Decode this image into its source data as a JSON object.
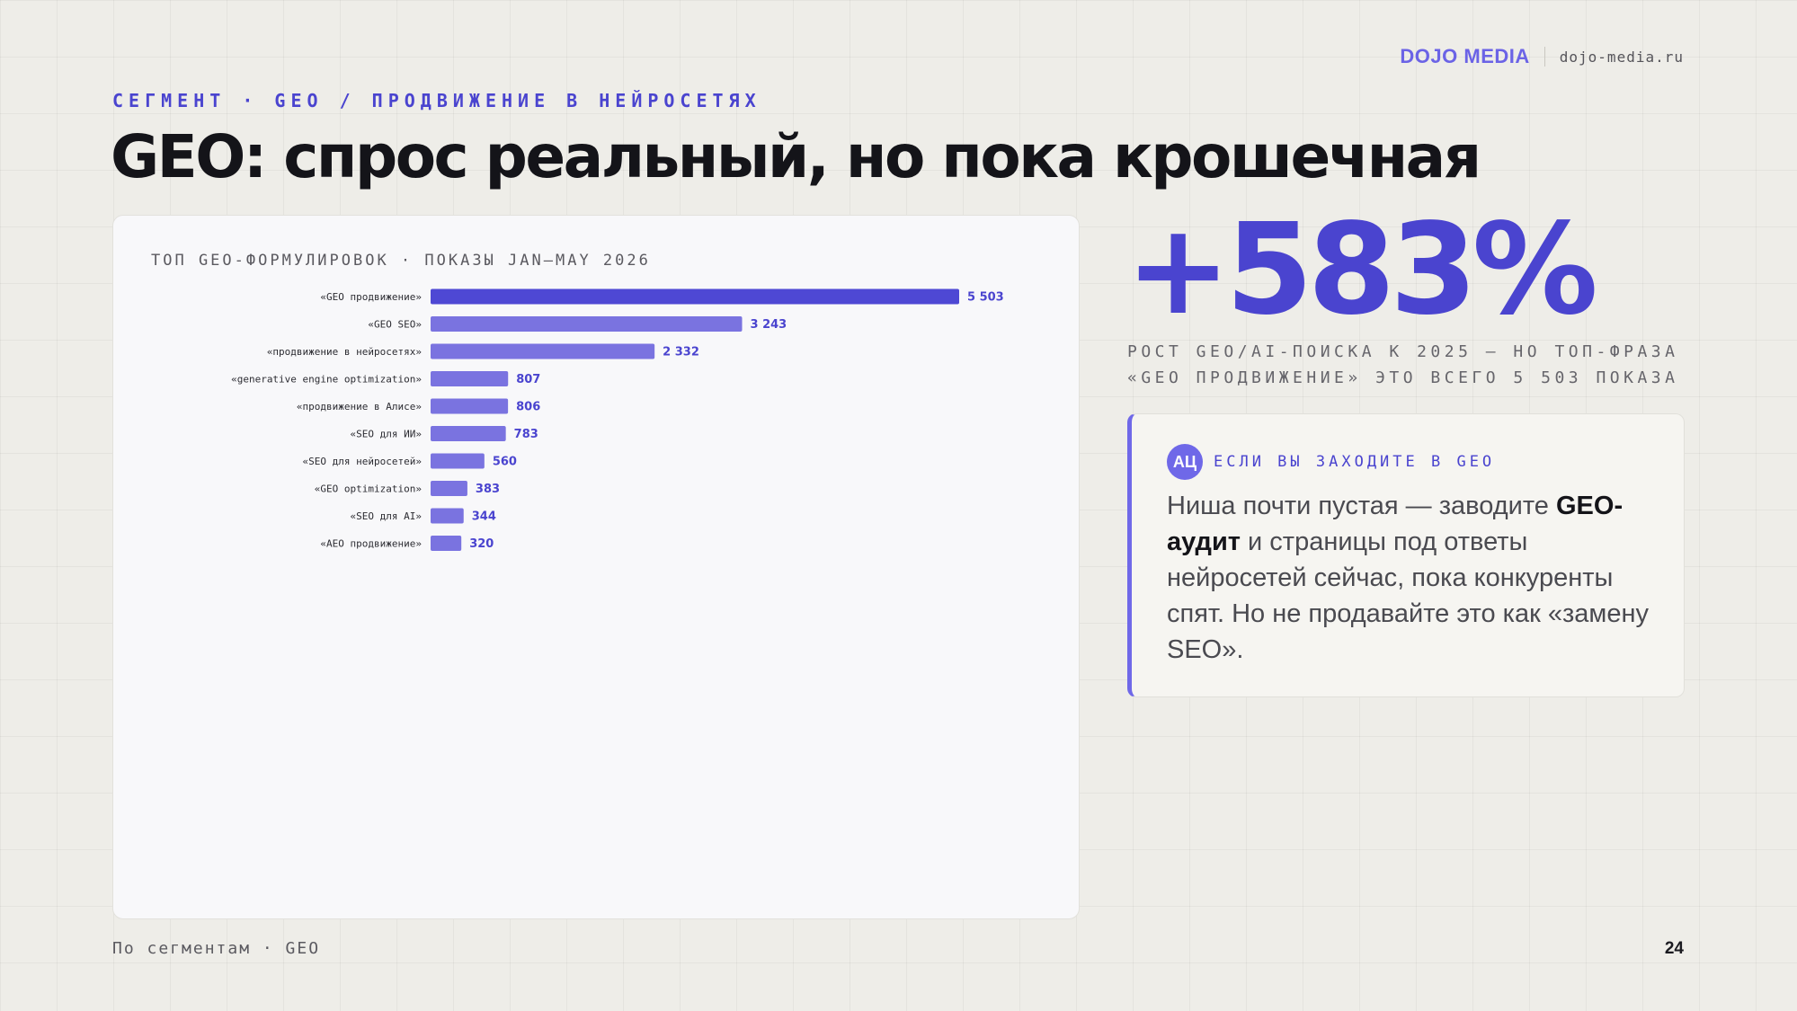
{
  "brand": {
    "name": "DOJO MEDIA",
    "site": "dojo-media.ru"
  },
  "header": {
    "eyebrow": "СЕГМЕНТ · GEO / ПРОДВИЖЕНИЕ В НЕЙРОСЕТЯХ",
    "title": "GEO: спрос реальный, но пока крошечная"
  },
  "chart_title": "ТОП GEO-ФОРМУЛИРОВОК · ПОКАЗЫ JAN–MAY 2026",
  "chart_data": {
    "type": "bar",
    "orientation": "horizontal",
    "title": "ТОП GEO-ФОРМУЛИРОВОК · ПОКАЗЫ JAN–MAY 2026",
    "categories": [
      "«GEO продвижение»",
      "«GEO SEO»",
      "«продвижение в нейросетях»",
      "«generative engine optimization»",
      "«продвижение в Алисе»",
      "«SEO для ИИ»",
      "«SEO для нейросетей»",
      "«GEO optimization»",
      "«SEO для AI»",
      "«AEO продвижение»"
    ],
    "values": [
      5503,
      3243,
      2332,
      807,
      806,
      783,
      560,
      383,
      344,
      320
    ],
    "value_labels": [
      "5 503",
      "3 243",
      "2 332",
      "807",
      "806",
      "783",
      "560",
      "383",
      "344",
      "320"
    ],
    "xlim": [
      0,
      5503
    ],
    "grid": false,
    "colors": {
      "top": "#4e48d4",
      "rest": "#7a73e0",
      "label": "#4a44cf"
    }
  },
  "stat": {
    "value": "+583%",
    "caption": "РОСТ GEO/AI-ПОИСКА К 2025 — НО ТОП-ФРАЗА «GEO ПРОДВИЖЕНИЕ» ЭТО ВСЕГО 5 503 ПОКАЗА"
  },
  "callout": {
    "avatar": "АЦ",
    "label": "ЕСЛИ ВЫ ЗАХОДИТЕ В GEO",
    "text_1": "Ниша почти пустая — заводите ",
    "text_bold": "GEO-аудит",
    "text_2": " и страницы под ответы нейросетей сейчас, пока конкуренты спят. Но не продавайте это как «замену SEO»."
  },
  "footer": {
    "left": "По сегментам · GEO",
    "page": "24"
  },
  "colors": {
    "accent": "#4a44cf",
    "accent_light": "#6f68e8",
    "background": "#eeede8"
  }
}
